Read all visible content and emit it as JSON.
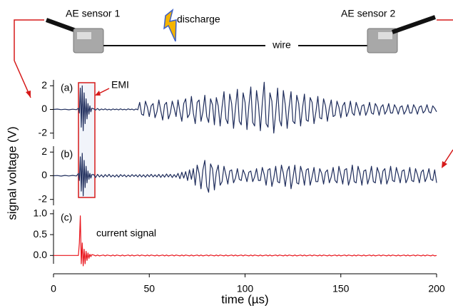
{
  "illustration": {
    "sensor1": "AE sensor 1",
    "discharge": "discharge",
    "wire": "wire",
    "sensor2": "AE sensor 2"
  },
  "chart_data": [
    {
      "type": "line",
      "label": "(a)",
      "annotation": "EMI",
      "color": "#1f2d5c",
      "xlim": [
        0,
        200
      ],
      "ylim": [
        -2.5,
        2.5
      ],
      "yticks": [
        -2,
        0,
        2
      ],
      "x": [
        0,
        2,
        4,
        6,
        8,
        10,
        12,
        13,
        13.5,
        14,
        14.5,
        15,
        15.5,
        16,
        16.5,
        17,
        17.5,
        18,
        18.5,
        19,
        19.5,
        20,
        21,
        22,
        23,
        24,
        25,
        26,
        27,
        28,
        29,
        30,
        31,
        32,
        33,
        34,
        35,
        36,
        37,
        38,
        39,
        40,
        41,
        42,
        43,
        44,
        45,
        46,
        47,
        48,
        49,
        50,
        51,
        52,
        53,
        54,
        55,
        56,
        57,
        58,
        59,
        60,
        61,
        62,
        63,
        64,
        65,
        66,
        67,
        68,
        69,
        70,
        71,
        72,
        73,
        74,
        75,
        76,
        77,
        78,
        79,
        80,
        81,
        82,
        83,
        84,
        85,
        86,
        87,
        88,
        89,
        90,
        91,
        92,
        93,
        94,
        95,
        96,
        97,
        98,
        99,
        100,
        101,
        102,
        103,
        104,
        105,
        106,
        107,
        108,
        109,
        110,
        111,
        112,
        113,
        114,
        115,
        116,
        117,
        118,
        119,
        120,
        121,
        122,
        123,
        124,
        125,
        126,
        127,
        128,
        129,
        130,
        131,
        132,
        133,
        134,
        135,
        136,
        137,
        138,
        139,
        140,
        141,
        142,
        143,
        144,
        145,
        146,
        147,
        148,
        149,
        150,
        151,
        152,
        153,
        154,
        155,
        156,
        157,
        158,
        159,
        160,
        161,
        162,
        163,
        164,
        165,
        166,
        167,
        168,
        169,
        170,
        171,
        172,
        173,
        174,
        175,
        176,
        177,
        178,
        179,
        180,
        181,
        182,
        183,
        184,
        185,
        186,
        187,
        188,
        189,
        190,
        191,
        192,
        193,
        194,
        195,
        196,
        197,
        198,
        199,
        200
      ],
      "values": [
        0,
        0.03,
        -0.02,
        0.02,
        -0.03,
        0.02,
        -0.02,
        0.1,
        -0.3,
        1.8,
        -1.5,
        2.0,
        -1.8,
        1.4,
        -1.2,
        0.9,
        -0.8,
        0.5,
        -0.4,
        0.3,
        -0.2,
        0.1,
        0.05,
        -0.05,
        0.08,
        -0.06,
        0.04,
        -0.03,
        0.05,
        -0.04,
        0.02,
        -0.05,
        0.04,
        -0.02,
        0.03,
        -0.04,
        0.05,
        -0.03,
        0.02,
        -0.04,
        0.05,
        -0.02,
        0.03,
        -0.05,
        0.04,
        -0.03,
        0.6,
        -0.4,
        -0.5,
        0.7,
        0.2,
        -0.6,
        0.3,
        0.5,
        -0.7,
        -0.2,
        0.8,
        -0.1,
        -0.9,
        0.4,
        0.6,
        -0.8,
        -0.3,
        0.7,
        0.1,
        -0.6,
        0.8,
        -0.2,
        -1.0,
        0.5,
        0.9,
        -0.7,
        -0.4,
        1.1,
        -0.3,
        -1.2,
        0.6,
        0.8,
        -1.0,
        -0.2,
        1.2,
        -0.6,
        -1.1,
        0.9,
        0.4,
        -1.3,
        1.0,
        0.3,
        -1.4,
        0.2,
        1.5,
        -0.8,
        -1.2,
        1.3,
        0.5,
        -1.6,
        0.1,
        1.7,
        -1.0,
        -1.3,
        1.4,
        0.6,
        -1.7,
        0.3,
        1.9,
        -1.1,
        -1.4,
        1.6,
        0.4,
        -1.8,
        0.5,
        2.3,
        -1.2,
        -1.5,
        1.4,
        0.7,
        -2.0,
        -0.3,
        1.8,
        -0.9,
        -1.4,
        1.6,
        0.4,
        -1.6,
        0.2,
        1.5,
        -1.0,
        -1.2,
        1.2,
        0.5,
        -1.4,
        0.1,
        1.3,
        -0.9,
        -1.0,
        1.0,
        0.6,
        -1.2,
        -0.2,
        1.1,
        -0.7,
        -0.8,
        0.9,
        0.3,
        -1.0,
        0.1,
        0.8,
        -0.6,
        -0.5,
        0.7,
        0.2,
        -0.7,
        0.3,
        0.6,
        -0.6,
        -0.2,
        0.7,
        -0.3,
        -0.5,
        0.6,
        0.1,
        -0.5,
        0.3,
        0.4,
        -0.5,
        -0.1,
        0.6,
        -0.3,
        -0.4,
        0.5,
        0.2,
        -0.5,
        0.2,
        0.4,
        -0.4,
        -0.1,
        0.5,
        -0.3,
        -0.3,
        0.4,
        0.1,
        -0.4,
        0.2,
        0.3,
        -0.4,
        -0.1,
        0.4,
        -0.3,
        -0.3,
        0.4,
        0.1,
        -0.4,
        0.2,
        0.3,
        -0.3,
        -0.1,
        0.4,
        -0.2,
        -0.3,
        0.3,
        0.1,
        -0.2
      ]
    },
    {
      "type": "line",
      "label": "(b)",
      "ylabel": "signal voltage (V)",
      "color": "#1f2d5c",
      "xlim": [
        0,
        200
      ],
      "ylim": [
        -2.5,
        2.5
      ],
      "yticks": [
        -2,
        0,
        2
      ],
      "x": [
        0,
        2,
        4,
        6,
        8,
        10,
        12,
        13,
        13.5,
        14,
        14.5,
        15,
        15.5,
        16,
        16.5,
        17,
        17.5,
        18,
        18.5,
        19,
        19.5,
        20,
        21,
        22,
        23,
        24,
        25,
        26,
        27,
        28,
        29,
        30,
        31,
        32,
        33,
        34,
        35,
        36,
        37,
        38,
        39,
        40,
        41,
        42,
        43,
        44,
        45,
        46,
        47,
        48,
        49,
        50,
        51,
        52,
        53,
        54,
        55,
        56,
        57,
        58,
        59,
        60,
        61,
        62,
        63,
        64,
        65,
        66,
        67,
        68,
        69,
        70,
        71,
        72,
        73,
        74,
        75,
        76,
        77,
        78,
        79,
        80,
        81,
        82,
        83,
        84,
        85,
        86,
        87,
        88,
        89,
        90,
        91,
        92,
        93,
        94,
        95,
        96,
        97,
        98,
        99,
        100,
        101,
        102,
        103,
        104,
        105,
        106,
        107,
        108,
        109,
        110,
        111,
        112,
        113,
        114,
        115,
        116,
        117,
        118,
        119,
        120,
        121,
        122,
        123,
        124,
        125,
        126,
        127,
        128,
        129,
        130,
        131,
        132,
        133,
        134,
        135,
        136,
        137,
        138,
        139,
        140,
        141,
        142,
        143,
        144,
        145,
        146,
        147,
        148,
        149,
        150,
        151,
        152,
        153,
        154,
        155,
        156,
        157,
        158,
        159,
        160,
        161,
        162,
        163,
        164,
        165,
        166,
        167,
        168,
        169,
        170,
        171,
        172,
        173,
        174,
        175,
        176,
        177,
        178,
        179,
        180,
        181,
        182,
        183,
        184,
        185,
        186,
        187,
        188,
        189,
        190,
        191,
        192,
        193,
        194,
        195,
        196,
        197,
        198,
        199,
        200
      ],
      "values": [
        0,
        0.02,
        -0.03,
        0.03,
        -0.02,
        0.03,
        -0.02,
        0.2,
        -0.4,
        1.6,
        -1.3,
        1.9,
        -1.7,
        1.3,
        -1.0,
        0.8,
        -0.6,
        0.4,
        -0.3,
        0.2,
        -0.2,
        0.1,
        0.1,
        -0.15,
        0.12,
        -0.1,
        0.08,
        -0.12,
        0.1,
        -0.08,
        0.12,
        -0.1,
        0.06,
        -0.1,
        0.08,
        -0.12,
        0.1,
        -0.06,
        0.08,
        -0.1,
        0.06,
        -0.08,
        0.1,
        -0.06,
        0.08,
        -0.1,
        0.1,
        -0.1,
        0.08,
        -0.12,
        0.1,
        -0.08,
        0.12,
        -0.1,
        0.08,
        -0.1,
        0.12,
        -0.14,
        0.1,
        -0.12,
        0.15,
        -0.1,
        0.12,
        -0.15,
        0.1,
        -0.12,
        0.2,
        -0.25,
        0.3,
        -0.2,
        0.35,
        -0.4,
        0.5,
        -0.3,
        0.6,
        -0.8,
        0.9,
        0.2,
        -1.1,
        0.5,
        1.3,
        -0.9,
        -1.4,
        1.0,
        0.6,
        -1.2,
        0.3,
        0.9,
        -0.8,
        -0.5,
        0.8,
        0.1,
        -0.7,
        0.4,
        0.5,
        -0.6,
        -0.2,
        0.6,
        -0.3,
        -0.4,
        0.5,
        0.1,
        -0.5,
        0.3,
        0.4,
        -0.5,
        -0.1,
        0.6,
        -0.4,
        -0.4,
        0.7,
        0.1,
        -0.8,
        0.5,
        0.6,
        -0.9,
        -0.2,
        0.8,
        -0.5,
        -0.6,
        0.9,
        0.2,
        -0.9,
        0.4,
        0.8,
        -1.1,
        -0.2,
        0.9,
        -0.6,
        -0.7,
        0.8,
        0.2,
        -0.8,
        0.5,
        0.6,
        -0.8,
        -0.1,
        0.7,
        -0.5,
        -0.5,
        0.6,
        0.2,
        -0.7,
        0.3,
        0.5,
        -0.6,
        -0.1,
        0.7,
        -0.4,
        -0.6,
        0.8,
        0.1,
        -0.7,
        0.5,
        0.6,
        -0.8,
        -0.2,
        0.9,
        -0.5,
        -0.6,
        0.8,
        0.2,
        -0.8,
        0.4,
        0.5,
        -0.7,
        -0.1,
        0.8,
        -0.5,
        -0.6,
        0.7,
        0.2,
        -0.7,
        0.4,
        0.6,
        -0.7,
        -0.2,
        0.8,
        -0.4,
        -0.5,
        0.7,
        0.1,
        -0.6,
        0.4,
        0.5,
        -0.6,
        -0.2,
        0.7,
        -0.4,
        -0.5,
        0.6,
        0.1,
        -0.6,
        0.3,
        0.5,
        -0.5,
        -0.1,
        0.6,
        -0.3,
        -0.4,
        0.5,
        -0.6
      ]
    },
    {
      "type": "line",
      "label": "(c)",
      "annotation": "current signal",
      "color": "#e8141b",
      "xlabel": "time (µs)",
      "xlim": [
        0,
        200
      ],
      "xticks": [
        0,
        50,
        100,
        150,
        200
      ],
      "ylim": [
        -0.2,
        1.1
      ],
      "yticks": [
        {
          "value": 0,
          "label": "0.0"
        },
        {
          "value": 0.5,
          "label": "0.5"
        },
        {
          "value": 1,
          "label": "1.0"
        }
      ],
      "x": [
        0,
        2,
        4,
        6,
        8,
        10,
        12,
        13,
        13.5,
        14,
        14.5,
        15,
        15.5,
        16,
        16.5,
        17,
        17.5,
        18,
        18.5,
        19,
        19.5,
        20,
        21,
        22,
        23,
        24,
        25,
        26,
        27,
        28,
        29,
        30,
        31,
        32,
        33,
        34,
        35,
        36,
        37,
        38,
        39,
        40,
        41,
        42,
        43,
        44,
        45,
        46,
        47,
        48,
        49,
        50,
        51,
        52,
        53,
        54,
        55,
        56,
        57,
        58,
        59,
        60,
        61,
        62,
        63,
        64,
        65,
        66,
        67,
        68,
        69,
        70,
        71,
        72,
        73,
        74,
        75,
        76,
        77,
        78,
        79,
        80,
        81,
        82,
        83,
        84,
        85,
        86,
        87,
        88,
        89,
        90,
        91,
        92,
        93,
        94,
        95,
        96,
        97,
        98,
        99,
        100,
        101,
        102,
        103,
        104,
        105,
        106,
        107,
        108,
        109,
        110,
        111,
        112,
        113,
        114,
        115,
        116,
        117,
        118,
        119,
        120,
        121,
        122,
        123,
        124,
        125,
        126,
        127,
        128,
        129,
        130,
        131,
        132,
        133,
        134,
        135,
        136,
        137,
        138,
        139,
        140,
        141,
        142,
        143,
        144,
        145,
        146,
        147,
        148,
        149,
        150,
        151,
        152,
        153,
        154,
        155,
        156,
        157,
        158,
        159,
        160,
        161,
        162,
        163,
        164,
        165,
        166,
        167,
        168,
        169,
        170,
        171,
        172,
        173,
        174,
        175,
        176,
        177,
        178,
        179,
        180,
        181,
        182,
        183,
        184,
        185,
        186,
        187,
        188,
        189,
        190,
        191,
        192,
        193,
        194,
        195,
        196,
        197,
        198,
        199,
        200
      ],
      "values": [
        0,
        0,
        0,
        0,
        0,
        0,
        0,
        0,
        0.3,
        0.95,
        -0.2,
        0.3,
        -0.25,
        0.15,
        -0.2,
        0.1,
        -0.12,
        0.06,
        -0.07,
        0.03,
        -0.03,
        0.02,
        0.01,
        -0.01,
        0.01,
        -0.01,
        0,
        0.01,
        -0.01,
        0.01,
        0,
        -0.01,
        0.01,
        -0.01,
        0.01,
        0,
        -0.01,
        0.01,
        -0.01,
        0,
        0.01,
        -0.01,
        0.01,
        -0.01,
        0,
        0.01,
        -0.01,
        0.01,
        0,
        -0.01,
        0.01,
        -0.01,
        0.01,
        0,
        -0.01,
        0.01,
        -0.01,
        0,
        0.01,
        -0.01,
        0.01,
        -0.01,
        0,
        0.01,
        -0.01,
        0.01,
        0,
        -0.01,
        0.01,
        -0.01,
        0.01,
        0,
        -0.01,
        0.01,
        -0.01,
        0,
        0.01,
        -0.01,
        0.01,
        -0.01,
        0,
        0.01,
        -0.01,
        0.01,
        0,
        -0.01,
        0.01,
        -0.01,
        0.01,
        0,
        -0.01,
        0.01,
        -0.01,
        0,
        0.01,
        -0.01,
        0.01,
        -0.01,
        0,
        0.01,
        -0.01,
        0.01,
        0,
        -0.01,
        0.01,
        -0.01,
        0.01,
        0,
        -0.01,
        0.01,
        -0.01,
        0,
        0.01,
        -0.01,
        0.01,
        -0.01,
        0,
        0.01,
        -0.01,
        0.01,
        0,
        -0.01,
        0.01,
        -0.01,
        0.01,
        0,
        -0.01,
        0.01,
        -0.01,
        0,
        0.01,
        -0.01,
        0.01,
        -0.01,
        0,
        0.01,
        -0.01,
        0.01,
        0,
        -0.01,
        0.01,
        -0.01,
        0.01,
        0,
        -0.01,
        0.01,
        -0.01,
        0,
        0.01,
        -0.01,
        0.01,
        -0.01,
        0,
        0.01,
        -0.01,
        0.01,
        0,
        -0.01,
        0.01,
        -0.01,
        0.01,
        0,
        -0.01,
        0.01,
        -0.01,
        0,
        0.01,
        -0.01,
        0.01,
        -0.01,
        0,
        0.01,
        -0.01,
        0.01,
        0,
        -0.01,
        0.01,
        -0.01,
        0.01,
        0,
        -0.01,
        0.01,
        -0.01,
        0,
        0.01,
        -0.01,
        0.01,
        -0.01,
        0,
        0.01,
        -0.01,
        0.01,
        0,
        -0.01,
        0.01,
        -0.01,
        0.01,
        0,
        -0.01,
        0.01,
        -0.01,
        0
      ]
    }
  ]
}
